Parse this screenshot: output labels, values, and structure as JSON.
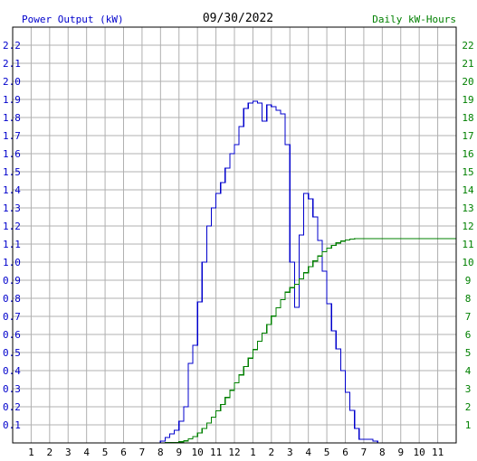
{
  "header": {
    "left_label": "Power Output (kW)",
    "date": "09/30/2022",
    "right_label": "Daily kW-Hours"
  },
  "colors": {
    "left_axis_text": "#0000cc",
    "right_axis_text": "#008000",
    "power_line": "#0000cc",
    "energy_line": "#008000",
    "grid": "#b0b0b0",
    "frame": "#000000"
  },
  "chart_data": {
    "type": "line",
    "title": "09/30/2022",
    "grid": true,
    "x_ticks": [
      "1",
      "2",
      "3",
      "4",
      "5",
      "6",
      "7",
      "8",
      "9",
      "10",
      "11",
      "12",
      "1",
      "2",
      "3",
      "4",
      "5",
      "6",
      "7",
      "8",
      "9",
      "10",
      "11"
    ],
    "x_range": [
      0,
      24
    ],
    "y_left": {
      "label": "Power Output (kW)",
      "range": [
        0,
        2.3
      ],
      "ticks": [
        "0.1",
        "0.2",
        "0.3",
        "0.4",
        "0.5",
        "0.6",
        "0.7",
        "0.8",
        "0.9",
        "1.0",
        "1.1",
        "1.2",
        "1.3",
        "1.4",
        "1.5",
        "1.6",
        "1.7",
        "1.8",
        "1.9",
        "2.0",
        "2.1",
        "2.2"
      ]
    },
    "y_right": {
      "label": "Daily kW-Hours",
      "range": [
        0,
        23
      ],
      "ticks": [
        "1",
        "2",
        "3",
        "4",
        "5",
        "6",
        "7",
        "8",
        "9",
        "10",
        "11",
        "12",
        "13",
        "14",
        "15",
        "16",
        "17",
        "18",
        "19",
        "20",
        "21",
        "22"
      ]
    },
    "series": [
      {
        "name": "Power Output (kW)",
        "axis": "left",
        "step": true,
        "x": [
          7.75,
          8.0,
          8.25,
          8.5,
          8.75,
          9.0,
          9.25,
          9.5,
          9.75,
          10.0,
          10.25,
          10.5,
          10.75,
          11.0,
          11.25,
          11.5,
          11.75,
          12.0,
          12.25,
          12.5,
          12.75,
          13.0,
          13.25,
          13.5,
          13.75,
          14.0,
          14.25,
          14.5,
          14.75,
          15.0,
          15.25,
          15.5,
          15.75,
          16.0,
          16.25,
          16.5,
          16.75,
          17.0,
          17.25,
          17.5,
          17.75,
          18.0,
          18.25,
          18.5,
          18.75,
          19.0,
          19.25,
          19.5,
          19.75,
          20.0
        ],
        "y": [
          0.0,
          0.01,
          0.03,
          0.05,
          0.07,
          0.12,
          0.2,
          0.44,
          0.54,
          0.78,
          1.0,
          1.2,
          1.3,
          1.38,
          1.44,
          1.52,
          1.6,
          1.65,
          1.75,
          1.85,
          1.88,
          1.89,
          1.88,
          1.78,
          1.87,
          1.86,
          1.84,
          1.82,
          1.65,
          1.0,
          0.75,
          1.15,
          1.38,
          1.35,
          1.25,
          1.12,
          0.95,
          0.77,
          0.62,
          0.52,
          0.4,
          0.28,
          0.18,
          0.08,
          0.02,
          0.02,
          0.02,
          0.01,
          0.0,
          0.0
        ]
      },
      {
        "name": "Daily kW-Hours",
        "axis": "right",
        "step": true,
        "x": [
          7.75,
          8.0,
          8.25,
          8.5,
          8.75,
          9.0,
          9.25,
          9.5,
          9.75,
          10.0,
          10.25,
          10.5,
          10.75,
          11.0,
          11.25,
          11.5,
          11.75,
          12.0,
          12.25,
          12.5,
          12.75,
          13.0,
          13.25,
          13.5,
          13.75,
          14.0,
          14.25,
          14.5,
          14.75,
          15.0,
          15.25,
          15.5,
          15.75,
          16.0,
          16.25,
          16.5,
          16.75,
          17.0,
          17.25,
          17.5,
          17.75,
          18.0,
          18.25,
          18.5,
          18.75,
          19.0,
          19.25,
          19.5,
          19.75,
          20.0,
          24.0
        ],
        "y": [
          0.0,
          0.0,
          0.01,
          0.02,
          0.03,
          0.06,
          0.11,
          0.22,
          0.35,
          0.55,
          0.8,
          1.1,
          1.43,
          1.77,
          2.13,
          2.51,
          2.91,
          3.32,
          3.76,
          4.22,
          4.69,
          5.16,
          5.63,
          6.08,
          6.55,
          7.01,
          7.47,
          7.93,
          8.34,
          8.59,
          8.78,
          9.07,
          9.41,
          9.75,
          10.06,
          10.34,
          10.58,
          10.77,
          10.93,
          11.06,
          11.16,
          11.23,
          11.28,
          11.3,
          11.3,
          11.3,
          11.3,
          11.3,
          11.3,
          11.3,
          11.3
        ]
      }
    ]
  }
}
